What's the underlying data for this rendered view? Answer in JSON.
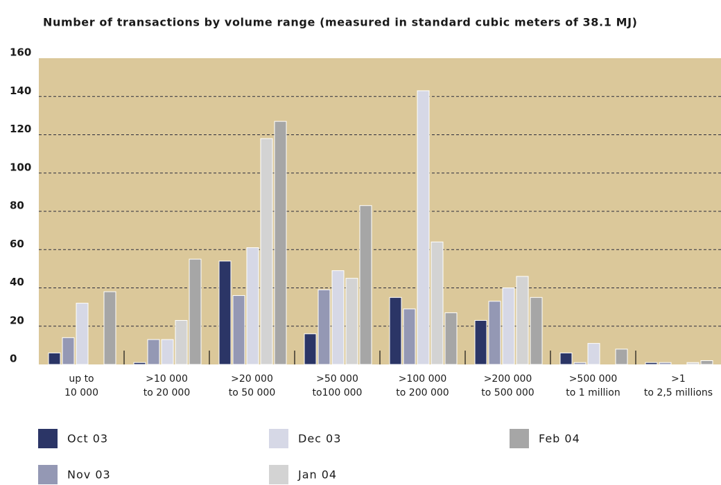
{
  "chart_data": {
    "type": "bar",
    "title": "Number of transactions by volume range (measured in standard cubic meters of 38.1 MJ)",
    "categories": [
      [
        "up to",
        "10 000"
      ],
      [
        ">10 000",
        "to 20 000"
      ],
      [
        ">20 000",
        "to 50 000"
      ],
      [
        ">50 000",
        "to100 000"
      ],
      [
        ">100 000",
        "to 200 000"
      ],
      [
        ">200 000",
        "to 500 000"
      ],
      [
        ">500 000",
        "to 1 million"
      ],
      [
        ">1",
        "to 2,5 millions"
      ]
    ],
    "series": [
      {
        "name": "Oct 03",
        "color": "#2b3566",
        "values": [
          6,
          1,
          54,
          16,
          35,
          23,
          6,
          1
        ]
      },
      {
        "name": "Nov 03",
        "color": "#9498b4",
        "values": [
          14,
          13,
          36,
          39,
          29,
          33,
          1,
          1
        ]
      },
      {
        "name": "Dec 03",
        "color": "#d6d8e6",
        "values": [
          32,
          13,
          61,
          49,
          143,
          40,
          11,
          0
        ]
      },
      {
        "name": "Jan 04",
        "color": "#d3d3d3",
        "values": [
          0,
          23,
          118,
          45,
          64,
          46,
          0,
          1
        ]
      },
      {
        "name": "Feb 04",
        "color": "#a6a6a6",
        "values": [
          38,
          55,
          127,
          83,
          27,
          35,
          8,
          2
        ]
      }
    ],
    "ylim": [
      0,
      160
    ],
    "yticks": [
      0,
      20,
      40,
      60,
      80,
      100,
      120,
      140,
      160
    ],
    "grid": true,
    "background": "#dbc89a"
  }
}
